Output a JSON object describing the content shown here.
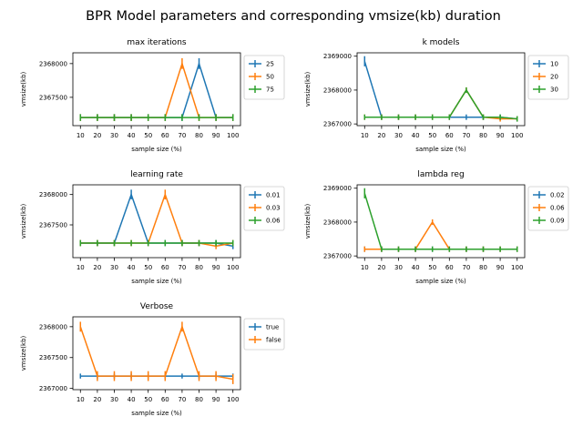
{
  "figure_title": "BPR Model parameters and corresponding vmsize(kb) duration",
  "colors": [
    "#1f77b4",
    "#ff7f0e",
    "#2ca02c"
  ],
  "chart_data": [
    {
      "type": "line",
      "title": "max iterations",
      "xlabel": "sample size (%)",
      "ylabel": "vmsize(kb)",
      "x": [
        10,
        20,
        30,
        40,
        50,
        60,
        70,
        80,
        90,
        100
      ],
      "xticks": [
        "10",
        "20",
        "30",
        "40",
        "50",
        "60",
        "70",
        "80",
        "90",
        "100"
      ],
      "yticks": [
        2367500,
        2368000
      ],
      "ytick_labels": [
        "2367500",
        "2368000"
      ],
      "ylim": [
        2367080,
        2368160
      ],
      "legend": "right-outside",
      "series": [
        {
          "name": "25",
          "values": [
            2367200,
            2367200,
            2367200,
            2367200,
            2367200,
            2367200,
            2367200,
            2368000,
            2367200,
            2367200
          ],
          "err": [
            50,
            50,
            50,
            50,
            50,
            50,
            50,
            80,
            50,
            50
          ]
        },
        {
          "name": "50",
          "values": [
            2367200,
            2367200,
            2367200,
            2367200,
            2367200,
            2367200,
            2368000,
            2367200,
            2367200,
            2367200
          ],
          "err": [
            50,
            50,
            50,
            50,
            50,
            50,
            80,
            50,
            50,
            50
          ]
        },
        {
          "name": "75",
          "values": [
            2367200,
            2367200,
            2367200,
            2367200,
            2367200,
            2367200,
            2367200,
            2367200,
            2367200,
            2367200
          ],
          "err": [
            50,
            50,
            50,
            50,
            50,
            50,
            50,
            50,
            50,
            50
          ]
        }
      ]
    },
    {
      "type": "line",
      "title": "k models",
      "xlabel": "sample size (%)",
      "ylabel": "vmsize(kb)",
      "x": [
        10,
        20,
        30,
        40,
        50,
        60,
        70,
        80,
        90,
        100
      ],
      "xticks": [
        "10",
        "20",
        "30",
        "40",
        "50",
        "60",
        "70",
        "80",
        "90",
        "100"
      ],
      "yticks": [
        2367000,
        2368000,
        2369000
      ],
      "ytick_labels": [
        "2367000",
        "2368000",
        "2369000"
      ],
      "ylim": [
        2366950,
        2369100
      ],
      "legend": "right-outside",
      "series": [
        {
          "name": "10",
          "values": [
            2368850,
            2367200,
            2367200,
            2367200,
            2367200,
            2367200,
            2367200,
            2367200,
            2367200,
            2367150
          ],
          "err": [
            150,
            80,
            80,
            80,
            80,
            80,
            80,
            80,
            80,
            80
          ]
        },
        {
          "name": "20",
          "values": [
            2367200,
            2367200,
            2367200,
            2367200,
            2367200,
            2367200,
            2368000,
            2367200,
            2367150,
            2367150
          ],
          "err": [
            80,
            80,
            80,
            80,
            80,
            80,
            80,
            80,
            80,
            80
          ]
        },
        {
          "name": "30",
          "values": [
            2367200,
            2367200,
            2367200,
            2367200,
            2367200,
            2367200,
            2368000,
            2367200,
            2367200,
            2367150
          ],
          "err": [
            80,
            80,
            80,
            80,
            80,
            80,
            80,
            80,
            80,
            80
          ]
        }
      ]
    },
    {
      "type": "line",
      "title": "learning rate",
      "xlabel": "sample size (%)",
      "ylabel": "vmsize(kb)",
      "x": [
        10,
        20,
        30,
        40,
        50,
        60,
        70,
        80,
        90,
        100
      ],
      "xticks": [
        "10",
        "20",
        "30",
        "40",
        "50",
        "60",
        "70",
        "80",
        "90",
        "100"
      ],
      "yticks": [
        2367500,
        2368000
      ],
      "ytick_labels": [
        "2367500",
        "2368000"
      ],
      "ylim": [
        2366960,
        2368160
      ],
      "legend": "right-outside",
      "series": [
        {
          "name": "0.01",
          "values": [
            2367200,
            2367200,
            2367200,
            2368000,
            2367200,
            2367200,
            2367200,
            2367200,
            2367200,
            2367150
          ],
          "err": [
            50,
            50,
            50,
            80,
            50,
            50,
            50,
            50,
            50,
            50
          ]
        },
        {
          "name": "0.03",
          "values": [
            2367200,
            2367200,
            2367200,
            2367200,
            2367200,
            2368000,
            2367200,
            2367200,
            2367150,
            2367200
          ],
          "err": [
            50,
            50,
            50,
            50,
            50,
            80,
            50,
            50,
            50,
            50
          ]
        },
        {
          "name": "0.06",
          "values": [
            2367200,
            2367200,
            2367200,
            2367200,
            2367200,
            2367200,
            2367200,
            2367200,
            2367200,
            2367200
          ],
          "err": [
            50,
            50,
            50,
            50,
            50,
            50,
            50,
            50,
            50,
            50
          ]
        }
      ]
    },
    {
      "type": "line",
      "title": "lambda reg",
      "xlabel": "sample size (%)",
      "ylabel": "vmsize(kb)",
      "x": [
        10,
        20,
        30,
        40,
        50,
        60,
        70,
        80,
        90,
        100
      ],
      "xticks": [
        "10",
        "20",
        "30",
        "40",
        "50",
        "60",
        "70",
        "80",
        "90",
        "100"
      ],
      "yticks": [
        2367000,
        2368000,
        2369000
      ],
      "ytick_labels": [
        "2367000",
        "2368000",
        "2369000"
      ],
      "ylim": [
        2366950,
        2369100
      ],
      "legend": "right-outside",
      "series": [
        {
          "name": "0.02",
          "values": [
            2367200,
            2367200,
            2367200,
            2367200,
            2367200,
            2367200,
            2367200,
            2367200,
            2367200,
            2367200
          ],
          "err": [
            80,
            80,
            80,
            80,
            80,
            80,
            80,
            80,
            80,
            80
          ]
        },
        {
          "name": "0.06",
          "values": [
            2367200,
            2367200,
            2367200,
            2367200,
            2368000,
            2367200,
            2367200,
            2367200,
            2367200,
            2367200
          ],
          "err": [
            80,
            80,
            80,
            80,
            80,
            80,
            80,
            80,
            80,
            80
          ]
        },
        {
          "name": "0.09",
          "values": [
            2368850,
            2367200,
            2367200,
            2367200,
            2367200,
            2367200,
            2367200,
            2367200,
            2367200,
            2367200
          ],
          "err": [
            150,
            80,
            80,
            80,
            80,
            80,
            80,
            80,
            80,
            80
          ]
        }
      ]
    },
    {
      "type": "line",
      "title": "Verbose",
      "xlabel": "sample size (%)",
      "ylabel": "vmsize(kb)",
      "x": [
        10,
        20,
        30,
        40,
        50,
        60,
        70,
        80,
        90,
        100
      ],
      "xticks": [
        "10",
        "20",
        "30",
        "40",
        "50",
        "60",
        "70",
        "80",
        "90",
        "100"
      ],
      "yticks": [
        2367000,
        2367500,
        2368000
      ],
      "ytick_labels": [
        "2367000",
        "2367500",
        "2368000"
      ],
      "ylim": [
        2366980,
        2368160
      ],
      "legend": "right-outside",
      "series": [
        {
          "name": "true",
          "values": [
            2367200,
            2367200,
            2367200,
            2367200,
            2367200,
            2367200,
            2367200,
            2367200,
            2367200,
            2367200
          ],
          "err": [
            40,
            40,
            40,
            40,
            40,
            40,
            40,
            40,
            40,
            40
          ]
        },
        {
          "name": "false",
          "values": [
            2368000,
            2367200,
            2367200,
            2367200,
            2367200,
            2367200,
            2368000,
            2367200,
            2367200,
            2367150
          ],
          "err": [
            80,
            80,
            80,
            80,
            80,
            80,
            80,
            80,
            80,
            80
          ]
        }
      ]
    }
  ]
}
